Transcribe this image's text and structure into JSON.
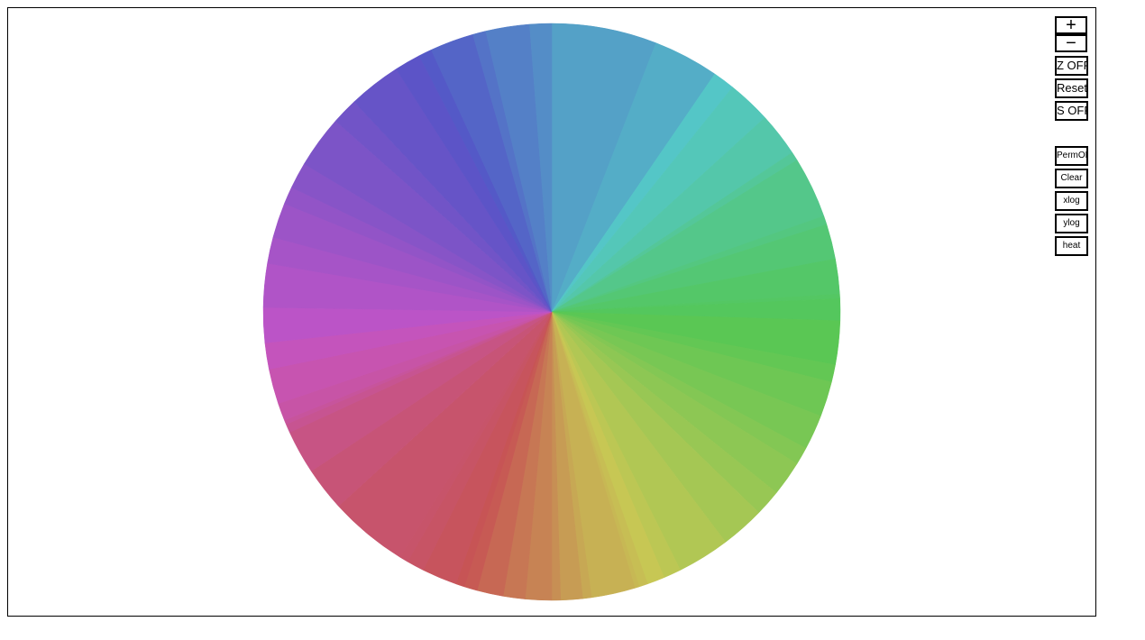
{
  "chart_data": {
    "type": "pie",
    "start_angle_deg": 90,
    "direction": "clockwise",
    "values": [
      12,
      7.5,
      2.5,
      5,
      5,
      1,
      7,
      1,
      4,
      4,
      0.5,
      2.5,
      5,
      2,
      4,
      4,
      2,
      4,
      3,
      5,
      6,
      2,
      2,
      1,
      0.5,
      5,
      1,
      2.5,
      1,
      3,
      2.5,
      3,
      1.5,
      1,
      4,
      2,
      1,
      9,
      5,
      5,
      1,
      0.5,
      2,
      4,
      3,
      4,
      5,
      3,
      4,
      2,
      3,
      6,
      3,
      6,
      3,
      1.5,
      5,
      1.5,
      5,
      2.5
    ],
    "colors": [
      "#54a1c7",
      "#54adc7",
      "#54c6c7",
      "#54c7b9",
      "#54c7aa",
      "#54c799",
      "#54c78a",
      "#54c780",
      "#54c774",
      "#54c768",
      "#54c763",
      "#54c75d",
      "#5ac754",
      "#63c754",
      "#6ec754",
      "#78c754",
      "#83c754",
      "#8dc754",
      "#98c754",
      "#a5c754",
      "#b1c754",
      "#bcc754",
      "#c7c754",
      "#c7be54",
      "#c7b854",
      "#c7b154",
      "#c7a854",
      "#c79c54",
      "#c78f54",
      "#c78354",
      "#c77754",
      "#c76854",
      "#c75a54",
      "#c75455",
      "#c7545d",
      "#c75465",
      "#c7546a",
      "#c7546c",
      "#c75477",
      "#c75484",
      "#c75491",
      "#c7549c",
      "#c754a6",
      "#c754b0",
      "#c454bc",
      "#bb54c7",
      "#b054c7",
      "#a654c7",
      "#9c54c7",
      "#9254c7",
      "#8754c7",
      "#7c54c7",
      "#7154c7",
      "#6654c7",
      "#5c54c7",
      "#5459c7",
      "#5465c7",
      "#5473c7",
      "#5480c7",
      "#548dc7"
    ]
  },
  "controls": {
    "zoom_in": "+",
    "zoom_out": "−",
    "z_toggle": "Z OFF",
    "reset": "Reset",
    "s_toggle": "S OFF",
    "perm": "PermON",
    "clear": "Clear",
    "xlog": "xlog",
    "ylog": "ylog",
    "heat": "heat"
  }
}
